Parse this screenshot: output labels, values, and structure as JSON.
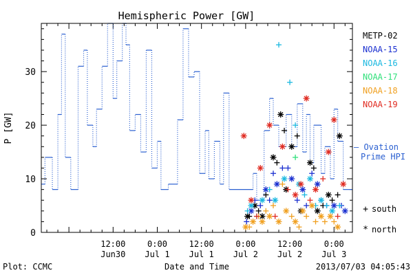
{
  "chart_data": {
    "type": "scatter",
    "title": "Hemispheric Power [GW]",
    "ylabel": "P [GW]",
    "xlabel": "Date and Time",
    "ylim": [
      0,
      39
    ],
    "xlim": [
      "2013-06-29T16:30",
      "2013-07-03T05:00"
    ],
    "y_ticks": [
      0,
      10,
      20,
      30
    ],
    "x_ticks": [
      {
        "time": "2013-06-30T12:00",
        "label_top": "12:00",
        "label_bottom": "Jun30"
      },
      {
        "time": "2013-07-01T00:00",
        "label_top": "0:00",
        "label_bottom": "Jul 1"
      },
      {
        "time": "2013-07-01T12:00",
        "label_top": "12:00",
        "label_bottom": "Jul 1"
      },
      {
        "time": "2013-07-02T00:00",
        "label_top": "0:00",
        "label_bottom": "Jul 2"
      },
      {
        "time": "2013-07-02T12:00",
        "label_top": "12:00",
        "label_bottom": "Jul 2"
      },
      {
        "time": "2013-07-03T00:00",
        "label_top": "0:00",
        "label_bottom": "Jul 3"
      }
    ],
    "footer_left": "Plot: CCMC",
    "footer_right": "2013/07/03 04:05:43",
    "ovation_label": [
      "— Ovation",
      "Prime HPI"
    ],
    "symbol_legend": [
      {
        "symbol": "+",
        "label": "south"
      },
      {
        "symbol": "*",
        "label": "north"
      }
    ],
    "series": [
      {
        "name": "Ovation Prime HPI",
        "color": "#2a5fd0",
        "style": "step",
        "points": [
          [
            "2013-06-29T16:30",
            9
          ],
          [
            "2013-06-29T17:30",
            14
          ],
          [
            "2013-06-29T19:30",
            8
          ],
          [
            "2013-06-29T21:00",
            22
          ],
          [
            "2013-06-29T22:00",
            37
          ],
          [
            "2013-06-29T23:00",
            14
          ],
          [
            "2013-06-30T00:30",
            8
          ],
          [
            "2013-06-30T02:30",
            31
          ],
          [
            "2013-06-30T04:00",
            34
          ],
          [
            "2013-06-30T05:00",
            20
          ],
          [
            "2013-06-30T06:30",
            16
          ],
          [
            "2013-06-30T07:30",
            23
          ],
          [
            "2013-06-30T09:00",
            31
          ],
          [
            "2013-06-30T10:30",
            39
          ],
          [
            "2013-06-30T12:00",
            25
          ],
          [
            "2013-06-30T13:00",
            32
          ],
          [
            "2013-06-30T14:30",
            39
          ],
          [
            "2013-06-30T15:30",
            35
          ],
          [
            "2013-06-30T16:30",
            19
          ],
          [
            "2013-06-30T18:00",
            22
          ],
          [
            "2013-06-30T19:30",
            15
          ],
          [
            "2013-06-30T21:00",
            34
          ],
          [
            "2013-06-30T22:30",
            12
          ],
          [
            "2013-07-01T00:00",
            17
          ],
          [
            "2013-07-01T01:00",
            8
          ],
          [
            "2013-07-01T03:00",
            9
          ],
          [
            "2013-07-01T05:30",
            21
          ],
          [
            "2013-07-01T07:00",
            38
          ],
          [
            "2013-07-01T08:30",
            29
          ],
          [
            "2013-07-01T10:00",
            30
          ],
          [
            "2013-07-01T11:30",
            11
          ],
          [
            "2013-07-01T13:00",
            19
          ],
          [
            "2013-07-01T14:00",
            10
          ],
          [
            "2013-07-01T15:30",
            17
          ],
          [
            "2013-07-01T17:00",
            9
          ],
          [
            "2013-07-01T18:00",
            26
          ],
          [
            "2013-07-01T19:30",
            8
          ],
          [
            "2013-07-02T02:00",
            11
          ],
          [
            "2013-07-02T03:00",
            6
          ],
          [
            "2013-07-02T05:00",
            19
          ],
          [
            "2013-07-02T06:30",
            25
          ],
          [
            "2013-07-02T07:30",
            20
          ],
          [
            "2013-07-02T09:00",
            16
          ],
          [
            "2013-07-02T11:00",
            22
          ],
          [
            "2013-07-02T12:30",
            16
          ],
          [
            "2013-07-02T14:00",
            24
          ],
          [
            "2013-07-02T15:30",
            15
          ],
          [
            "2013-07-02T16:30",
            22
          ],
          [
            "2013-07-02T17:30",
            13
          ],
          [
            "2013-07-02T18:30",
            20
          ],
          [
            "2013-07-02T20:30",
            11
          ],
          [
            "2013-07-02T21:30",
            16
          ],
          [
            "2013-07-02T23:00",
            10
          ],
          [
            "2013-07-03T00:00",
            23
          ],
          [
            "2013-07-03T01:00",
            17
          ],
          [
            "2013-07-03T02:30",
            8
          ],
          [
            "2013-07-03T05:00",
            8
          ]
        ]
      },
      {
        "name": "METP-02",
        "color": "#000000",
        "style": "markers",
        "points": [
          [
            "2013-07-02T00:30",
            3,
            "*"
          ],
          [
            "2013-07-02T01:00",
            3,
            "+"
          ],
          [
            "2013-07-02T02:30",
            5,
            "*"
          ],
          [
            "2013-07-02T03:30",
            4,
            "+"
          ],
          [
            "2013-07-02T04:30",
            3,
            "*"
          ],
          [
            "2013-07-02T05:30",
            7,
            "+"
          ],
          [
            "2013-07-02T07:30",
            14,
            "*"
          ],
          [
            "2013-07-02T08:30",
            13,
            "+"
          ],
          [
            "2013-07-02T09:30",
            22,
            "*"
          ],
          [
            "2013-07-02T10:30",
            19,
            "+"
          ],
          [
            "2013-07-02T11:00",
            8,
            "*"
          ],
          [
            "2013-07-02T12:30",
            16,
            "*"
          ],
          [
            "2013-07-02T14:00",
            18,
            "+"
          ],
          [
            "2013-07-02T15:00",
            4,
            "*"
          ],
          [
            "2013-07-02T17:30",
            13,
            "*"
          ],
          [
            "2013-07-02T18:30",
            12,
            "+"
          ],
          [
            "2013-07-02T19:30",
            4,
            "*"
          ],
          [
            "2013-07-02T21:00",
            5,
            "+"
          ],
          [
            "2013-07-02T22:30",
            7,
            "*"
          ],
          [
            "2013-07-02T23:30",
            6,
            "+"
          ],
          [
            "2013-07-03T01:00",
            7,
            "+"
          ],
          [
            "2013-07-03T01:30",
            18,
            "*"
          ]
        ]
      },
      {
        "name": "NOAA-15",
        "color": "#1a2fd0",
        "style": "markers",
        "points": [
          [
            "2013-07-02T00:15",
            2,
            "+"
          ],
          [
            "2013-07-02T01:30",
            4,
            "*"
          ],
          [
            "2013-07-02T02:30",
            6,
            "+"
          ],
          [
            "2013-07-02T04:00",
            5,
            "+"
          ],
          [
            "2013-07-02T05:30",
            8,
            "*"
          ],
          [
            "2013-07-02T06:30",
            6,
            "+"
          ],
          [
            "2013-07-02T07:30",
            11,
            "+"
          ],
          [
            "2013-07-02T08:30",
            9,
            "*"
          ],
          [
            "2013-07-02T10:00",
            12,
            "+"
          ],
          [
            "2013-07-02T11:30",
            12,
            "+"
          ],
          [
            "2013-07-02T12:30",
            10,
            "*"
          ],
          [
            "2013-07-02T14:00",
            6,
            "+"
          ],
          [
            "2013-07-02T15:30",
            8,
            "*"
          ],
          [
            "2013-07-02T16:30",
            5,
            "+"
          ],
          [
            "2013-07-02T18:00",
            11,
            "+"
          ],
          [
            "2013-07-02T19:30",
            9,
            "*"
          ],
          [
            "2013-07-02T20:30",
            6,
            "+"
          ],
          [
            "2013-07-02T22:00",
            5,
            "+"
          ],
          [
            "2013-07-03T00:00",
            5,
            "*"
          ],
          [
            "2013-07-03T02:00",
            5,
            "+"
          ],
          [
            "2013-07-03T03:00",
            4,
            "*"
          ]
        ]
      },
      {
        "name": "NOAA-16",
        "color": "#1ab8e0",
        "style": "markers",
        "points": [
          [
            "2013-07-02T00:30",
            4,
            "+"
          ],
          [
            "2013-07-02T01:30",
            5,
            "*"
          ],
          [
            "2013-07-02T03:00",
            3,
            "+"
          ],
          [
            "2013-07-02T04:30",
            6,
            "*"
          ],
          [
            "2013-07-02T06:30",
            8,
            "+"
          ],
          [
            "2013-07-02T08:00",
            6,
            "*"
          ],
          [
            "2013-07-02T09:00",
            35,
            "+"
          ],
          [
            "2013-07-02T10:30",
            10,
            "*"
          ],
          [
            "2013-07-02T12:00",
            28,
            "+"
          ],
          [
            "2013-07-02T13:30",
            20,
            "+"
          ],
          [
            "2013-07-02T14:30",
            9,
            "*"
          ],
          [
            "2013-07-02T16:00",
            7,
            "+"
          ],
          [
            "2013-07-02T17:30",
            10,
            "*"
          ],
          [
            "2013-07-02T19:00",
            5,
            "+"
          ],
          [
            "2013-07-02T20:30",
            6,
            "*"
          ],
          [
            "2013-07-02T22:00",
            5,
            "+"
          ],
          [
            "2013-07-02T23:30",
            4,
            "*"
          ],
          [
            "2013-07-03T01:30",
            5,
            "+"
          ]
        ]
      },
      {
        "name": "NOAA-17",
        "color": "#2fe07a",
        "style": "markers",
        "points": [
          [
            "2013-07-02T13:30",
            14,
            "+"
          ]
        ]
      },
      {
        "name": "NOAA-18",
        "color": "#f0a020",
        "style": "markers",
        "points": [
          [
            "2013-07-02T00:00",
            1,
            "*"
          ],
          [
            "2013-07-02T01:00",
            1,
            "+"
          ],
          [
            "2013-07-02T02:00",
            2,
            "*"
          ],
          [
            "2013-07-02T03:30",
            3,
            "+"
          ],
          [
            "2013-07-02T04:30",
            2,
            "*"
          ],
          [
            "2013-07-02T05:30",
            4,
            "+"
          ],
          [
            "2013-07-02T06:30",
            3,
            "*"
          ],
          [
            "2013-07-02T07:30",
            5,
            "+"
          ],
          [
            "2013-07-02T09:00",
            2,
            "*"
          ],
          [
            "2013-07-02T10:00",
            9,
            "+"
          ],
          [
            "2013-07-02T11:00",
            4,
            "*"
          ],
          [
            "2013-07-02T12:30",
            3,
            "+"
          ],
          [
            "2013-07-02T13:30",
            2,
            "*"
          ],
          [
            "2013-07-02T14:30",
            1,
            "+"
          ],
          [
            "2013-07-02T15:30",
            4,
            "*"
          ],
          [
            "2013-07-02T16:30",
            3,
            "+"
          ],
          [
            "2013-07-02T18:00",
            5,
            "*"
          ],
          [
            "2013-07-02T19:00",
            2,
            "+"
          ],
          [
            "2013-07-02T20:30",
            3,
            "*"
          ],
          [
            "2013-07-02T21:30",
            2,
            "+"
          ],
          [
            "2013-07-02T23:00",
            3,
            "*"
          ],
          [
            "2013-07-03T00:00",
            2,
            "+"
          ],
          [
            "2013-07-03T01:00",
            1,
            "*"
          ]
        ]
      },
      {
        "name": "NOAA-19",
        "color": "#e02a20",
        "style": "markers",
        "points": [
          [
            "2013-07-01T23:30",
            18,
            "*"
          ],
          [
            "2013-07-02T01:30",
            6,
            "*"
          ],
          [
            "2013-07-02T03:00",
            3,
            "+"
          ],
          [
            "2013-07-02T04:00",
            12,
            "*"
          ],
          [
            "2013-07-02T06:30",
            20,
            "*"
          ],
          [
            "2013-07-02T08:00",
            3,
            "+"
          ],
          [
            "2013-07-02T10:00",
            16,
            "*"
          ],
          [
            "2013-07-02T11:30",
            8,
            "+"
          ],
          [
            "2013-07-02T13:30",
            7,
            "*"
          ],
          [
            "2013-07-02T15:00",
            9,
            "*"
          ],
          [
            "2013-07-02T16:30",
            25,
            "*"
          ],
          [
            "2013-07-02T17:30",
            6,
            "+"
          ],
          [
            "2013-07-02T19:00",
            8,
            "*"
          ],
          [
            "2013-07-02T21:00",
            10,
            "+"
          ],
          [
            "2013-07-02T22:30",
            15,
            "*"
          ],
          [
            "2013-07-03T00:00",
            21,
            "*"
          ],
          [
            "2013-07-03T01:00",
            3,
            "+"
          ],
          [
            "2013-07-03T02:30",
            9,
            "*"
          ]
        ]
      }
    ]
  }
}
